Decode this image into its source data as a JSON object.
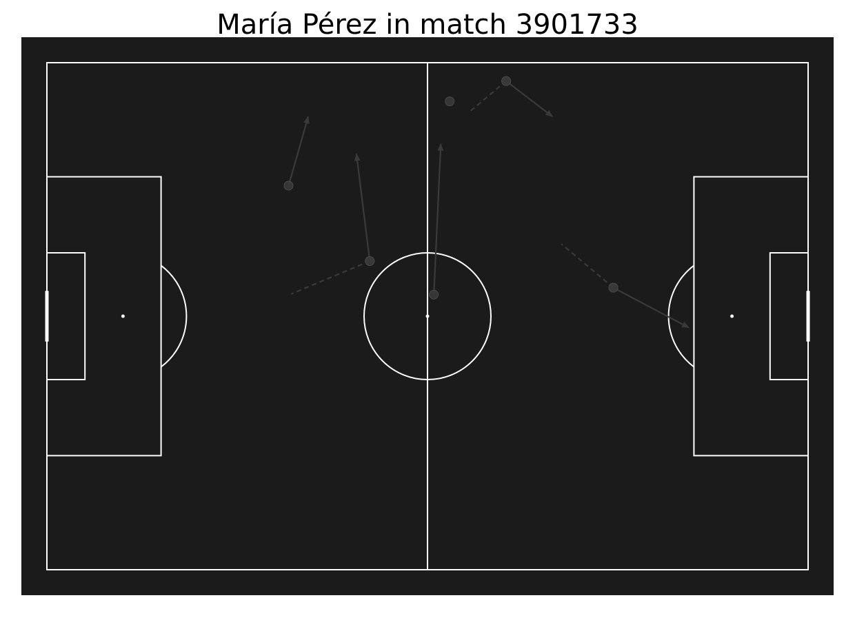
{
  "chart_data": {
    "type": "scatter",
    "title": "María Pérez in match 3901733",
    "pitch": {
      "length": 120,
      "width": 80,
      "background": "#1b1b1b",
      "line_color": "#ffffff"
    },
    "xlim": [
      0,
      120
    ],
    "ylim": [
      0,
      80
    ],
    "event_color": "#3a3a3a",
    "events": [
      {
        "x": 38.1,
        "y": 19.4,
        "end_x": 41.2,
        "end_y": 8.5,
        "line": "solid"
      },
      {
        "x": 50.9,
        "y": 31.3,
        "end_x": 48.8,
        "end_y": 14.4,
        "line": "solid"
      },
      {
        "x": 50.9,
        "y": 31.3,
        "end_x": 38.5,
        "end_y": 36.5,
        "line": "dashed"
      },
      {
        "x": 61.0,
        "y": 36.6,
        "end_x": 62.1,
        "end_y": 12.8,
        "line": "solid"
      },
      {
        "x": 63.5,
        "y": 6.1,
        "end_x": null,
        "end_y": null,
        "line": "none"
      },
      {
        "x": 72.4,
        "y": 2.9,
        "end_x": 79.7,
        "end_y": 8.5,
        "line": "solid"
      },
      {
        "x": 72.4,
        "y": 2.9,
        "end_x": 66.8,
        "end_y": 7.6,
        "line": "dashed"
      },
      {
        "x": 89.3,
        "y": 35.5,
        "end_x": 101.2,
        "end_y": 41.8,
        "line": "solid"
      },
      {
        "x": 89.3,
        "y": 35.5,
        "end_x": 81.1,
        "end_y": 28.6,
        "line": "dashed"
      }
    ]
  }
}
